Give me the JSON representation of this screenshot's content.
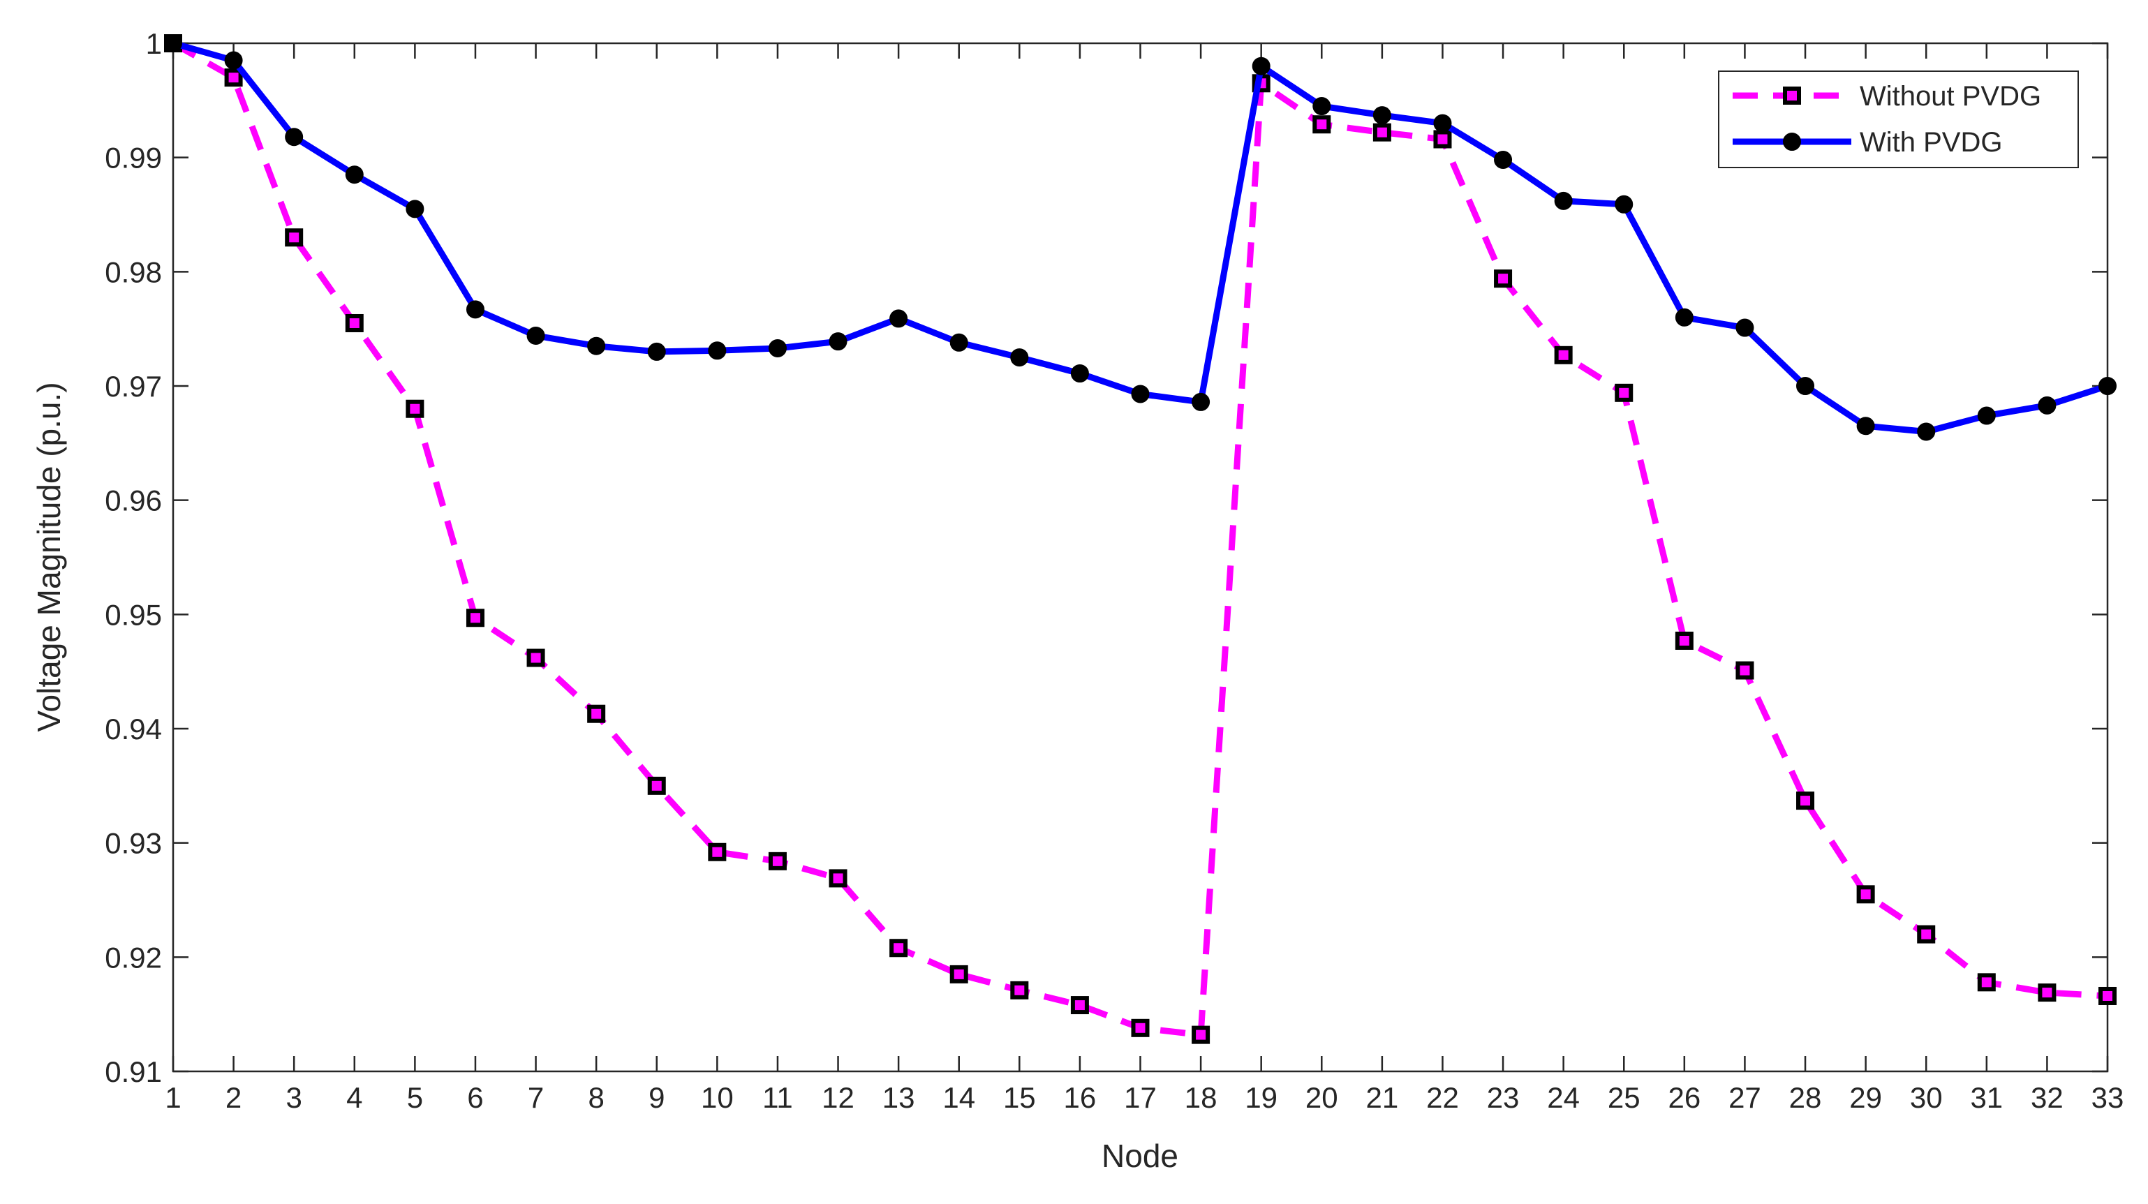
{
  "chart_data": {
    "type": "line",
    "xlabel": "Node",
    "ylabel": "Voltage Magnitude (p.u.)",
    "title": "",
    "xlim": [
      1,
      33
    ],
    "ylim": [
      0.91,
      1.0
    ],
    "x": [
      1,
      2,
      3,
      4,
      5,
      6,
      7,
      8,
      9,
      10,
      11,
      12,
      13,
      14,
      15,
      16,
      17,
      18,
      19,
      20,
      21,
      22,
      23,
      24,
      25,
      26,
      27,
      28,
      29,
      30,
      31,
      32,
      33
    ],
    "x_ticks": [
      "1",
      "2",
      "3",
      "4",
      "5",
      "6",
      "7",
      "8",
      "9",
      "10",
      "11",
      "12",
      "13",
      "14",
      "15",
      "16",
      "17",
      "18",
      "19",
      "20",
      "21",
      "22",
      "23",
      "24",
      "25",
      "26",
      "27",
      "28",
      "29",
      "30",
      "31",
      "32",
      "33"
    ],
    "y_ticks": [
      "0.91",
      "0.92",
      "0.93",
      "0.94",
      "0.95",
      "0.96",
      "0.97",
      "0.98",
      "0.99",
      "1"
    ],
    "y_tick_values": [
      0.91,
      0.92,
      0.93,
      0.94,
      0.95,
      0.96,
      0.97,
      0.98,
      0.99,
      1.0
    ],
    "grid": false,
    "legend_position": "top-right",
    "series": [
      {
        "name": "Without PVDG",
        "color": "#ff00ff",
        "marker_color": "#000000",
        "line_style": "dashed",
        "marker": "square",
        "values": [
          1.0,
          0.997,
          0.983,
          0.9755,
          0.968,
          0.9497,
          0.9462,
          0.9413,
          0.935,
          0.9292,
          0.9284,
          0.9269,
          0.9208,
          0.9185,
          0.9171,
          0.9158,
          0.9138,
          0.9132,
          0.9965,
          0.9929,
          0.9922,
          0.9916,
          0.9794,
          0.9727,
          0.9694,
          0.9477,
          0.9451,
          0.9337,
          0.9255,
          0.922,
          0.9178,
          0.9169,
          0.9166
        ]
      },
      {
        "name": "With PVDG",
        "color": "#0000ff",
        "marker_color": "#000000",
        "line_style": "solid",
        "marker": "circle",
        "values": [
          1.0,
          0.9985,
          0.9918,
          0.9885,
          0.9855,
          0.9767,
          0.9744,
          0.9735,
          0.973,
          0.9731,
          0.9733,
          0.9739,
          0.9759,
          0.9738,
          0.9725,
          0.9711,
          0.9693,
          0.9686,
          0.998,
          0.9945,
          0.9937,
          0.993,
          0.9898,
          0.9862,
          0.9859,
          0.976,
          0.9751,
          0.97,
          0.9665,
          0.966,
          0.9674,
          0.9683,
          0.97
        ]
      }
    ]
  }
}
